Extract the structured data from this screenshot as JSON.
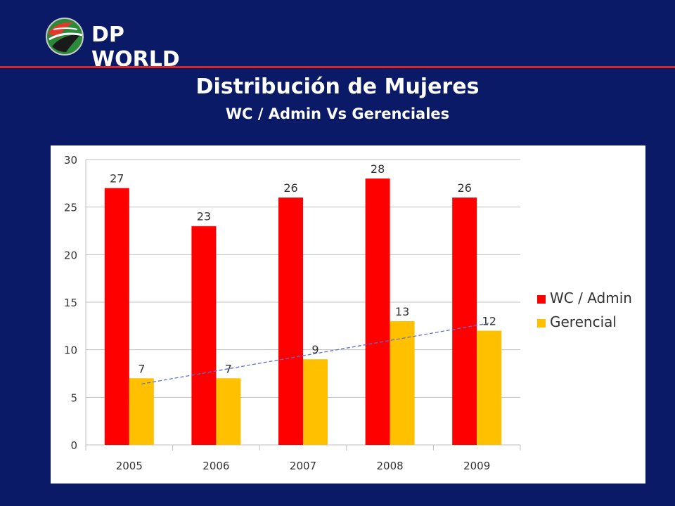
{
  "header": {
    "logo_text": "DP WORLD",
    "logo_icon": "dp-world-globe-icon"
  },
  "slide": {
    "title": "Distribución de Mujeres",
    "subtitle": "WC / Admin Vs Gerenciales"
  },
  "colors": {
    "background": "#0a1a66",
    "divider": "#d6262a",
    "wc_admin": "#ff0000",
    "gerencial": "#ffc000",
    "trendline": "#5b6fd6"
  },
  "chart_data": {
    "type": "bar",
    "categories": [
      "2005",
      "2006",
      "2007",
      "2008",
      "2009"
    ],
    "series": [
      {
        "name": "WC / Admin",
        "values": [
          27,
          23,
          26,
          28,
          26
        ]
      },
      {
        "name": "Gerencial",
        "values": [
          7,
          7,
          9,
          13,
          12
        ]
      }
    ],
    "trendline": {
      "series": "Gerencial",
      "type": "linear",
      "style": "dashed"
    },
    "yticks": [
      "0",
      "5",
      "10",
      "15",
      "20",
      "25",
      "30"
    ],
    "ylim": [
      0,
      30
    ],
    "grid": true,
    "legend": "right",
    "xlabel": "",
    "ylabel": ""
  }
}
